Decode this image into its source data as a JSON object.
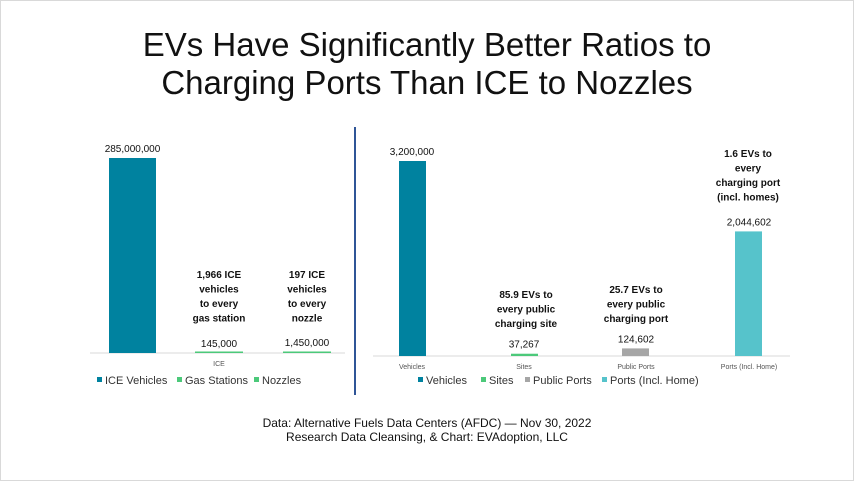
{
  "title_lines": [
    "EVs Have Significantly Better Ratios to",
    "Charging Ports Than ICE to Nozzles"
  ],
  "source_lines": [
    "Data: Alternative Fuels Data Centers (AFDC) — Nov 30, 2022",
    "Research Data Cleansing, & Chart: EVAdoption, LLC"
  ],
  "colors": {
    "teal": "#00829f",
    "green": "#4cc97a",
    "gray": "#a6a6a6",
    "light_teal": "#56c3cb",
    "divider": "#2f5597"
  },
  "chart_data": [
    {
      "type": "bar",
      "categories": [
        "ICE"
      ],
      "series": [
        {
          "name": "ICE Vehicles",
          "values": [
            285000000
          ],
          "label": "285,000,000",
          "color": "#00829f"
        },
        {
          "name": "Gas Stations",
          "values": [
            145000
          ],
          "label": "145,000",
          "color": "#4cc97a"
        },
        {
          "name": "Nozzles",
          "values": [
            1450000
          ],
          "label": "1,450,000",
          "color": "#4cc97a"
        }
      ],
      "ylim": [
        0,
        285000000
      ],
      "annotations": [
        {
          "text": [
            "1,966 ICE",
            "vehicles",
            "to every",
            "gas station"
          ]
        },
        {
          "text": [
            "197 ICE",
            "vehicles",
            "to every",
            "nozzle"
          ]
        }
      ],
      "legend_position": "bottom"
    },
    {
      "type": "bar",
      "categories": [
        "Vehicles",
        "Sites",
        "Public Ports",
        "Ports (Incl. Home)"
      ],
      "series": [
        {
          "name": "Vehicles",
          "values": [
            3200000,
            null,
            null,
            null
          ],
          "label": "3,200,000",
          "color": "#00829f"
        },
        {
          "name": "Sites",
          "values": [
            null,
            37267,
            null,
            null
          ],
          "label": "37,267",
          "color": "#4cc97a"
        },
        {
          "name": "Public Ports",
          "values": [
            null,
            null,
            124602,
            null
          ],
          "label": "124,602",
          "color": "#a6a6a6"
        },
        {
          "name": "Ports (Incl. Home)",
          "values": [
            null,
            null,
            null,
            2044602
          ],
          "label": "2,044,602",
          "color": "#56c3cb"
        }
      ],
      "ylim": [
        0,
        3200000
      ],
      "annotations": [
        {
          "text": [
            "85.9 EVs to",
            "every public",
            "charging site"
          ]
        },
        {
          "text": [
            "25.7 EVs to",
            "every public",
            "charging port"
          ]
        },
        {
          "text": [
            "1.6 EVs to",
            "every",
            "charging port",
            "(incl. homes)"
          ]
        }
      ],
      "legend_position": "bottom"
    }
  ]
}
